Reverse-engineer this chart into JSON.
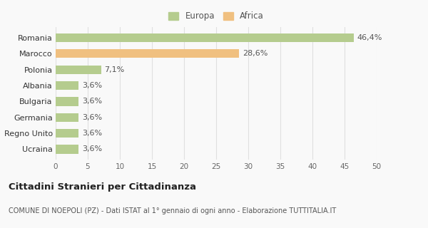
{
  "categories": [
    "Ucraina",
    "Regno Unito",
    "Germania",
    "Bulgaria",
    "Albania",
    "Polonia",
    "Marocco",
    "Romania"
  ],
  "values": [
    3.6,
    3.6,
    3.6,
    3.6,
    3.6,
    7.1,
    28.6,
    46.4
  ],
  "labels": [
    "3,6%",
    "3,6%",
    "3,6%",
    "3,6%",
    "3,6%",
    "7,1%",
    "28,6%",
    "46,4%"
  ],
  "colors": [
    "#b5cc8e",
    "#b5cc8e",
    "#b5cc8e",
    "#b5cc8e",
    "#b5cc8e",
    "#b5cc8e",
    "#f0c080",
    "#b5cc8e"
  ],
  "legend_labels": [
    "Europa",
    "Africa"
  ],
  "legend_colors": [
    "#b5cc8e",
    "#f0c080"
  ],
  "xlim": [
    0,
    50
  ],
  "xticks": [
    0,
    5,
    10,
    15,
    20,
    25,
    30,
    35,
    40,
    45,
    50
  ],
  "title": "Cittadini Stranieri per Cittadinanza",
  "subtitle": "COMUNE DI NOEPOLI (PZ) - Dati ISTAT al 1° gennaio di ogni anno - Elaborazione TUTTITALIA.IT",
  "bg_color": "#f9f9f9",
  "grid_color": "#e0e0e0",
  "label_fontsize": 8,
  "bar_height": 0.55
}
